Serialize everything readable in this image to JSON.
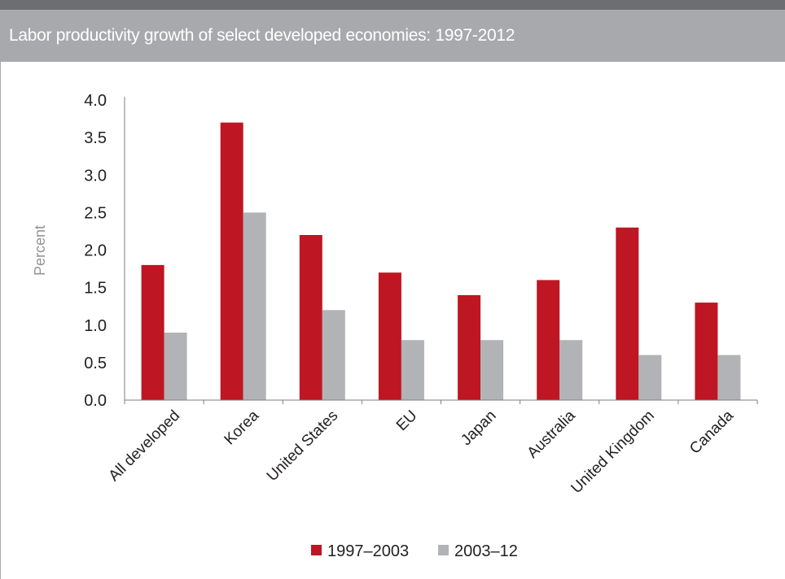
{
  "header": {
    "title": "Labor productivity growth of select developed economies: 1997-2012"
  },
  "colors": {
    "series1": "#be1622",
    "series2": "#b1b3b6",
    "header_bg": "#a7a9ac",
    "top_bar": "#6d6e71"
  },
  "chart_data": {
    "type": "bar",
    "title": "Labor productivity growth of select developed economies: 1997-2012",
    "xlabel": "",
    "ylabel": "Percent",
    "ylim": [
      0,
      4.0
    ],
    "yticks": [
      "0.0",
      "0.5",
      "1.0",
      "1.5",
      "2.0",
      "2.5",
      "3.0",
      "3.5",
      "4.0"
    ],
    "grid": false,
    "legend_position": "bottom",
    "categories": [
      "All developed",
      "Korea",
      "United States",
      "EU",
      "Japan",
      "Australia",
      "United Kingdom",
      "Canada"
    ],
    "series": [
      {
        "name": "1997–2003",
        "values": [
          1.8,
          3.7,
          2.2,
          1.7,
          1.4,
          1.6,
          2.3,
          1.3
        ]
      },
      {
        "name": "2003–12",
        "values": [
          0.9,
          2.5,
          1.2,
          0.8,
          0.8,
          0.8,
          0.6,
          0.6
        ]
      }
    ]
  }
}
